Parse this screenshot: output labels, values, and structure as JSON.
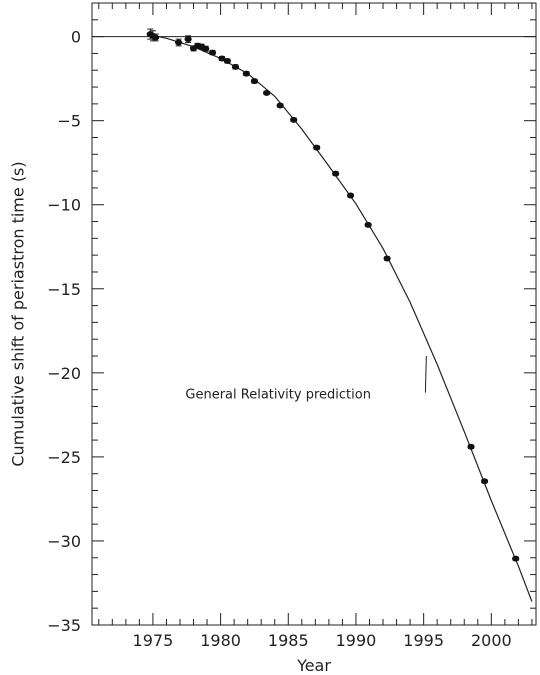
{
  "chart_data": {
    "type": "scatter",
    "xlabel": "Year",
    "ylabel": "Cumulative shift of periastron time (s)",
    "xlim": [
      1970.5,
      2003.3
    ],
    "ylim": [
      -35,
      2
    ],
    "x_ticks": [
      1975,
      1980,
      1985,
      1990,
      1995,
      2000
    ],
    "y_ticks": [
      0,
      -5,
      -10,
      -15,
      -20,
      -25,
      -30,
      -35
    ],
    "grid": false,
    "reference_line_y": 0,
    "series": [
      {
        "type": "scatter_errorbar",
        "points": [
          {
            "x": 1974.8,
            "y": 0.15,
            "err": 0.3
          },
          {
            "x": 1975.0,
            "y": 0.05,
            "err": 0.3
          },
          {
            "x": 1975.2,
            "y": -0.05,
            "err": 0.2
          },
          {
            "x": 1976.9,
            "y": -0.35,
            "err": 0.2
          },
          {
            "x": 1977.6,
            "y": -0.15,
            "err": 0.2
          },
          {
            "x": 1978.0,
            "y": -0.7,
            "err": 0.15
          },
          {
            "x": 1978.3,
            "y": -0.55,
            "err": 0.15
          },
          {
            "x": 1978.6,
            "y": -0.6,
            "err": 0.15
          },
          {
            "x": 1978.9,
            "y": -0.72,
            "err": 0.15
          },
          {
            "x": 1979.4,
            "y": -0.95,
            "err": 0.12
          },
          {
            "x": 1980.1,
            "y": -1.3,
            "err": 0.12
          },
          {
            "x": 1980.5,
            "y": -1.45,
            "err": 0.12
          },
          {
            "x": 1981.1,
            "y": -1.8,
            "err": 0.12
          },
          {
            "x": 1981.9,
            "y": -2.2,
            "err": 0.12
          },
          {
            "x": 1982.5,
            "y": -2.65,
            "err": 0.12
          },
          {
            "x": 1983.4,
            "y": -3.35,
            "err": 0.1
          },
          {
            "x": 1984.4,
            "y": -4.1,
            "err": 0.1
          },
          {
            "x": 1985.4,
            "y": -4.95,
            "err": 0.1
          },
          {
            "x": 1987.1,
            "y": -6.6,
            "err": 0.1
          },
          {
            "x": 1988.5,
            "y": -8.15,
            "err": 0.1
          },
          {
            "x": 1989.6,
            "y": -9.45,
            "err": 0.1
          },
          {
            "x": 1990.9,
            "y": -11.2,
            "err": 0.1
          },
          {
            "x": 1992.3,
            "y": -13.2,
            "err": 0.1
          },
          {
            "x": 1998.5,
            "y": -24.4,
            "err": 0.1
          },
          {
            "x": 1999.5,
            "y": -26.45,
            "err": 0.1
          },
          {
            "x": 2001.8,
            "y": -31.05,
            "err": 0.1
          }
        ]
      },
      {
        "name": "General Relativity prediction",
        "type": "line",
        "x": [
          1974.8,
          1976,
          1978,
          1980,
          1982,
          1984,
          1986,
          1988,
          1990,
          1992,
          1994,
          1996,
          1998,
          2000,
          2002,
          2003
        ],
        "y": [
          0.1,
          -0.1,
          -0.6,
          -1.3,
          -2.2,
          -3.55,
          -5.5,
          -7.7,
          -9.95,
          -12.6,
          -15.8,
          -19.5,
          -23.5,
          -27.6,
          -31.5,
          -33.6
        ]
      }
    ],
    "annotations": [
      {
        "text": "General Relativity prediction",
        "x": 1977.4,
        "y": -21.3,
        "pointer_to": {
          "x": 1995.2,
          "y": -19.0
        }
      }
    ]
  }
}
